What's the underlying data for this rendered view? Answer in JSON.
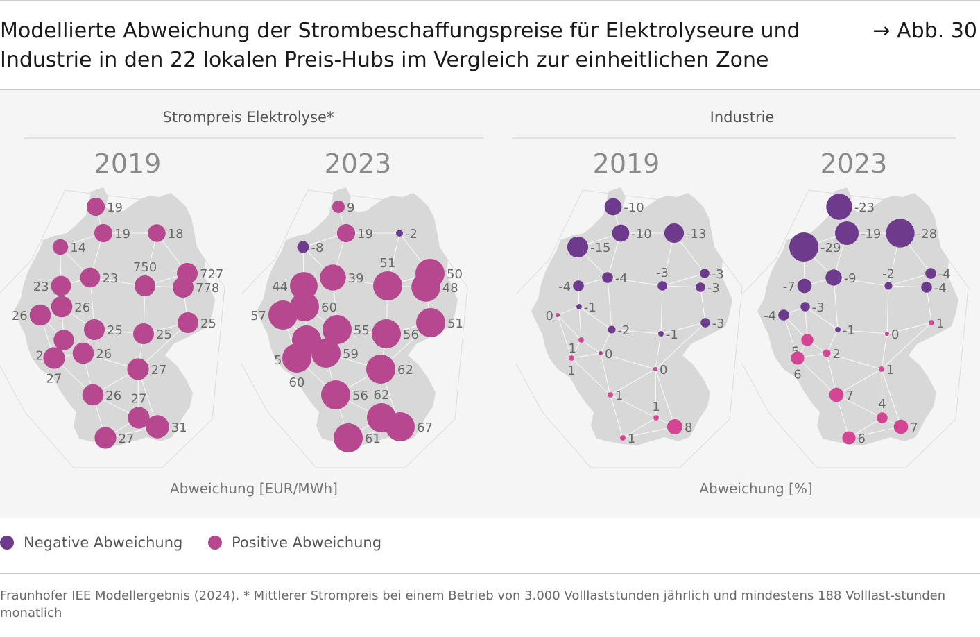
{
  "header": {
    "title_line1": "Modellierte Abweichung der Strombeschaffungspreise für Elektrolyseure und",
    "title_line2": "Industrie in den 22 lokalen Preis-Hubs im Vergleich zur einheitlichen Zone",
    "figure_ref": "→ Abb. 30"
  },
  "colors": {
    "negative": "#6e3a8c",
    "positive": "#b5488e",
    "positive_bright": "#d64594",
    "map": "#d8d8d8",
    "panel": "#f5f5f5"
  },
  "legend": {
    "negative_label": "Negative Abweichung",
    "positive_label": "Positive Abweichung"
  },
  "source": "Fraunhofer IEE Modellergebnis (2024). * Mittlerer Strompreis bei einem Betrieb von 3.000 Volllaststunden jährlich und mindestens 188 Volllast-stunden monatlich",
  "chart_data": [
    {
      "type": "bubble-map",
      "group_title": "Strompreis Elektrolyse*",
      "year": "2019",
      "unit_label": "Abweichung [EUR/MWh]",
      "values": [
        19,
        19,
        18,
        14,
        23,
        750,
        727,
        23,
        778,
        26,
        26,
        25,
        25,
        24,
        25,
        26,
        27,
        27,
        26,
        27,
        31,
        27
      ]
    },
    {
      "type": "bubble-map",
      "group_title": "Strompreis Elektrolyse*",
      "year": "2023",
      "unit_label": "Abweichung [EUR/MWh]",
      "values": [
        9,
        19,
        -2,
        -8,
        39,
        51,
        50,
        44,
        48,
        60,
        57,
        55,
        56,
        52,
        51,
        59,
        60,
        62,
        56,
        62,
        67,
        61
      ]
    },
    {
      "type": "bubble-map",
      "group_title": "Industrie",
      "year": "2019",
      "unit_label": "Abweichung [%]",
      "values": [
        -10,
        -10,
        -13,
        -15,
        -4,
        -3,
        -3,
        -4,
        -3,
        -1,
        0,
        -2,
        -1,
        1,
        -3,
        0,
        1,
        0,
        1,
        1,
        8,
        1
      ]
    },
    {
      "type": "bubble-map",
      "group_title": "Industrie",
      "year": "2023",
      "unit_label": "Abweichung [%]",
      "values": [
        -23,
        -19,
        -28,
        -29,
        -9,
        -2,
        -4,
        -7,
        -4,
        -3,
        -4,
        -1,
        0,
        5,
        1,
        2,
        6,
        1,
        7,
        4,
        7,
        6
      ]
    }
  ]
}
